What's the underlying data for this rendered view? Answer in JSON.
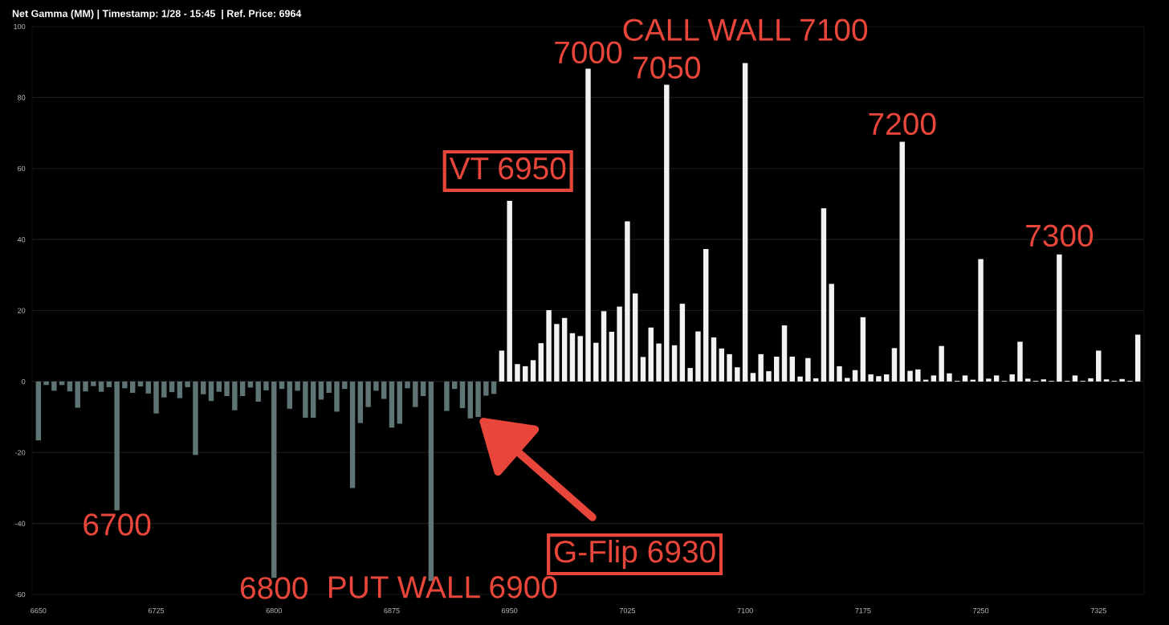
{
  "chart_data": {
    "type": "bar",
    "title": "Net Gamma (MM) | Timestamp: 1/28 - 15:45  | Ref. Price: 6964",
    "x": [
      6650,
      6655,
      6660,
      6665,
      6670,
      6675,
      6680,
      6685,
      6690,
      6695,
      6700,
      6705,
      6710,
      6715,
      6720,
      6725,
      6730,
      6735,
      6740,
      6745,
      6750,
      6755,
      6760,
      6765,
      6770,
      6775,
      6780,
      6785,
      6790,
      6795,
      6800,
      6805,
      6810,
      6815,
      6820,
      6825,
      6830,
      6835,
      6840,
      6845,
      6850,
      6855,
      6860,
      6865,
      6870,
      6875,
      6880,
      6885,
      6890,
      6895,
      6900,
      6905,
      6910,
      6915,
      6920,
      6925,
      6930,
      6935,
      6940,
      6945,
      6950,
      6955,
      6960,
      6965,
      6970,
      6975,
      6980,
      6985,
      6990,
      6995,
      7000,
      7005,
      7010,
      7015,
      7020,
      7025,
      7030,
      7035,
      7040,
      7045,
      7050,
      7055,
      7060,
      7065,
      7070,
      7075,
      7080,
      7085,
      7090,
      7095,
      7100,
      7105,
      7110,
      7115,
      7120,
      7125,
      7130,
      7135,
      7140,
      7145,
      7150,
      7155,
      7160,
      7165,
      7170,
      7175,
      7180,
      7185,
      7190,
      7195,
      7200,
      7205,
      7210,
      7215,
      7220,
      7225,
      7230,
      7235,
      7240,
      7245,
      7250,
      7255,
      7260,
      7265,
      7270,
      7275,
      7280,
      7285,
      7290,
      7295,
      7300,
      7305,
      7310,
      7315,
      7320,
      7325,
      7330,
      7335,
      7340,
      7345,
      7350
    ],
    "values": [
      -16.6,
      -1.0,
      -2.6,
      -1.0,
      -2.8,
      -7.4,
      -2.8,
      -1.3,
      -2.9,
      -1.6,
      -36.3,
      -1.9,
      -3.2,
      -1.4,
      -3.4,
      -9.0,
      -4.5,
      -3.0,
      -4.7,
      -1.6,
      -20.7,
      -3.6,
      -5.5,
      -2.9,
      -4.1,
      -8.1,
      -4.1,
      -1.7,
      -5.7,
      -2.5,
      -55.3,
      -2.1,
      -7.7,
      -2.6,
      -10.2,
      -10.2,
      -5.1,
      -3.2,
      -8.5,
      -2.1,
      -30.0,
      -11.7,
      -7.2,
      -2.6,
      -4.9,
      -13.0,
      -11.9,
      -1.9,
      -7.2,
      -4.1,
      -56.2,
      0,
      -8.3,
      -2.1,
      -7.5,
      -10.4,
      -10.0,
      -4.0,
      -3.5,
      8.7,
      50.9,
      4.9,
      4.3,
      6.0,
      10.8,
      20.1,
      16.2,
      17.9,
      13.6,
      12.8,
      88.1,
      10.9,
      19.8,
      14.0,
      21.1,
      45.1,
      24.8,
      6.9,
      15.2,
      10.7,
      83.6,
      10.2,
      21.9,
      3.8,
      14.1,
      37.3,
      12.4,
      9.3,
      7.7,
      4.0,
      89.7,
      2.4,
      7.7,
      2.9,
      7.0,
      15.8,
      7.0,
      1.4,
      6.6,
      0.9,
      48.8,
      27.5,
      4.3,
      1.0,
      3.2,
      18.1,
      2.0,
      1.5,
      2.0,
      9.4,
      67.5,
      3.0,
      3.4,
      0.5,
      1.7,
      10.0,
      2.3,
      0.2,
      1.7,
      0.5,
      34.5,
      0.8,
      1.7,
      0.2,
      2.0,
      11.2,
      0.8,
      0.2,
      0.6,
      0.2,
      35.8,
      0.2,
      1.7,
      0.2,
      0.9,
      8.7,
      0.6,
      0.2,
      0.7,
      0.2,
      13.2
    ],
    "colors": [
      "#5f7475",
      "#5f7475",
      "#5f7475",
      "#5f7475",
      "#5f7475",
      "#5f7475",
      "#5f7475",
      "#5f7475",
      "#5f7475",
      "#5f7475",
      "#5f7475",
      "#5f7475",
      "#5f7475",
      "#5f7475",
      "#5f7475",
      "#5f7475",
      "#5f7475",
      "#5f7475",
      "#5f7475",
      "#5f7475",
      "#5f7475",
      "#5f7475",
      "#5f7475",
      "#5f7475",
      "#5f7475",
      "#5f7475",
      "#5f7475",
      "#5f7475",
      "#5f7475",
      "#5f7475",
      "#5f7475",
      "#5f7475",
      "#5f7475",
      "#5f7475",
      "#5f7475",
      "#5f7475",
      "#5f7475",
      "#5f7475",
      "#5f7475",
      "#5f7475",
      "#5f7475",
      "#5f7475",
      "#5f7475",
      "#5f7475",
      "#5f7475",
      "#5f7475",
      "#5f7475",
      "#5f7475",
      "#5f7475",
      "#5f7475",
      "#5f7475",
      "#5f7475",
      "#5f7475",
      "#5f7475",
      "#5f7475",
      "#5f7475",
      "#5f7475",
      "#5f7475",
      "#5f7475",
      "#f2f2f2",
      "#f2f2f2",
      "#f2f2f2",
      "#f2f2f2",
      "#f2f2f2",
      "#f2f2f2",
      "#f2f2f2",
      "#f2f2f2",
      "#f2f2f2",
      "#f2f2f2",
      "#f2f2f2",
      "#f2f2f2",
      "#f2f2f2",
      "#f2f2f2",
      "#f2f2f2",
      "#f2f2f2",
      "#f2f2f2",
      "#f2f2f2",
      "#f2f2f2",
      "#f2f2f2",
      "#f2f2f2",
      "#f2f2f2",
      "#f2f2f2",
      "#f2f2f2",
      "#f2f2f2",
      "#f2f2f2",
      "#f2f2f2",
      "#f2f2f2",
      "#f2f2f2",
      "#f2f2f2",
      "#f2f2f2",
      "#f2f2f2",
      "#f2f2f2",
      "#f2f2f2",
      "#f2f2f2",
      "#f2f2f2",
      "#f2f2f2",
      "#f2f2f2",
      "#f2f2f2",
      "#f2f2f2",
      "#f2f2f2",
      "#f2f2f2",
      "#f2f2f2",
      "#f2f2f2",
      "#f2f2f2",
      "#f2f2f2",
      "#f2f2f2",
      "#f2f2f2",
      "#f2f2f2",
      "#f2f2f2",
      "#f2f2f2",
      "#f2f2f2",
      "#f2f2f2",
      "#f2f2f2",
      "#f2f2f2",
      "#f2f2f2",
      "#f2f2f2",
      "#f2f2f2",
      "#f2f2f2",
      "#f2f2f2",
      "#f2f2f2",
      "#f2f2f2",
      "#f2f2f2",
      "#f2f2f2",
      "#f2f2f2",
      "#f2f2f2",
      "#f2f2f2",
      "#f2f2f2",
      "#f2f2f2",
      "#f2f2f2",
      "#f2f2f2",
      "#f2f2f2",
      "#f2f2f2",
      "#f2f2f2",
      "#f2f2f2",
      "#f2f2f2",
      "#f2f2f2",
      "#f2f2f2",
      "#f2f2f2",
      "#f2f2f2",
      "#f2f2f2",
      "#f2f2f2"
    ],
    "xlim": [
      6646,
      7354
    ],
    "xticks": [
      6650,
      6725,
      6800,
      6875,
      6950,
      7025,
      7100,
      7175,
      7250,
      7325
    ],
    "ylim": [
      -60,
      100
    ],
    "yticks": [
      -60,
      -40,
      -20,
      0,
      20,
      40,
      60,
      80,
      100
    ],
    "grid": "y",
    "annotations": [
      {
        "text": "CALL WALL 7100",
        "x": 7100,
        "y": 89.7
      },
      {
        "text": "7000",
        "x": 7000,
        "y": 88.1
      },
      {
        "text": "7050",
        "x": 7050,
        "y": 83.6
      },
      {
        "text": "VT 6950",
        "x": 6950,
        "y": 50.9
      },
      {
        "text": "7200",
        "x": 7200,
        "y": 67.5
      },
      {
        "text": "7300",
        "x": 7300,
        "y": 35.8
      },
      {
        "text": "6700",
        "x": 6700,
        "y": -36.3
      },
      {
        "text": "6800",
        "x": 6800,
        "y": -55.3
      },
      {
        "text": "PUT WALL 6900",
        "x": 6900,
        "y": -56.2
      },
      {
        "text": "G-Flip 6930",
        "x": 6930,
        "y": -10.0
      }
    ]
  }
}
